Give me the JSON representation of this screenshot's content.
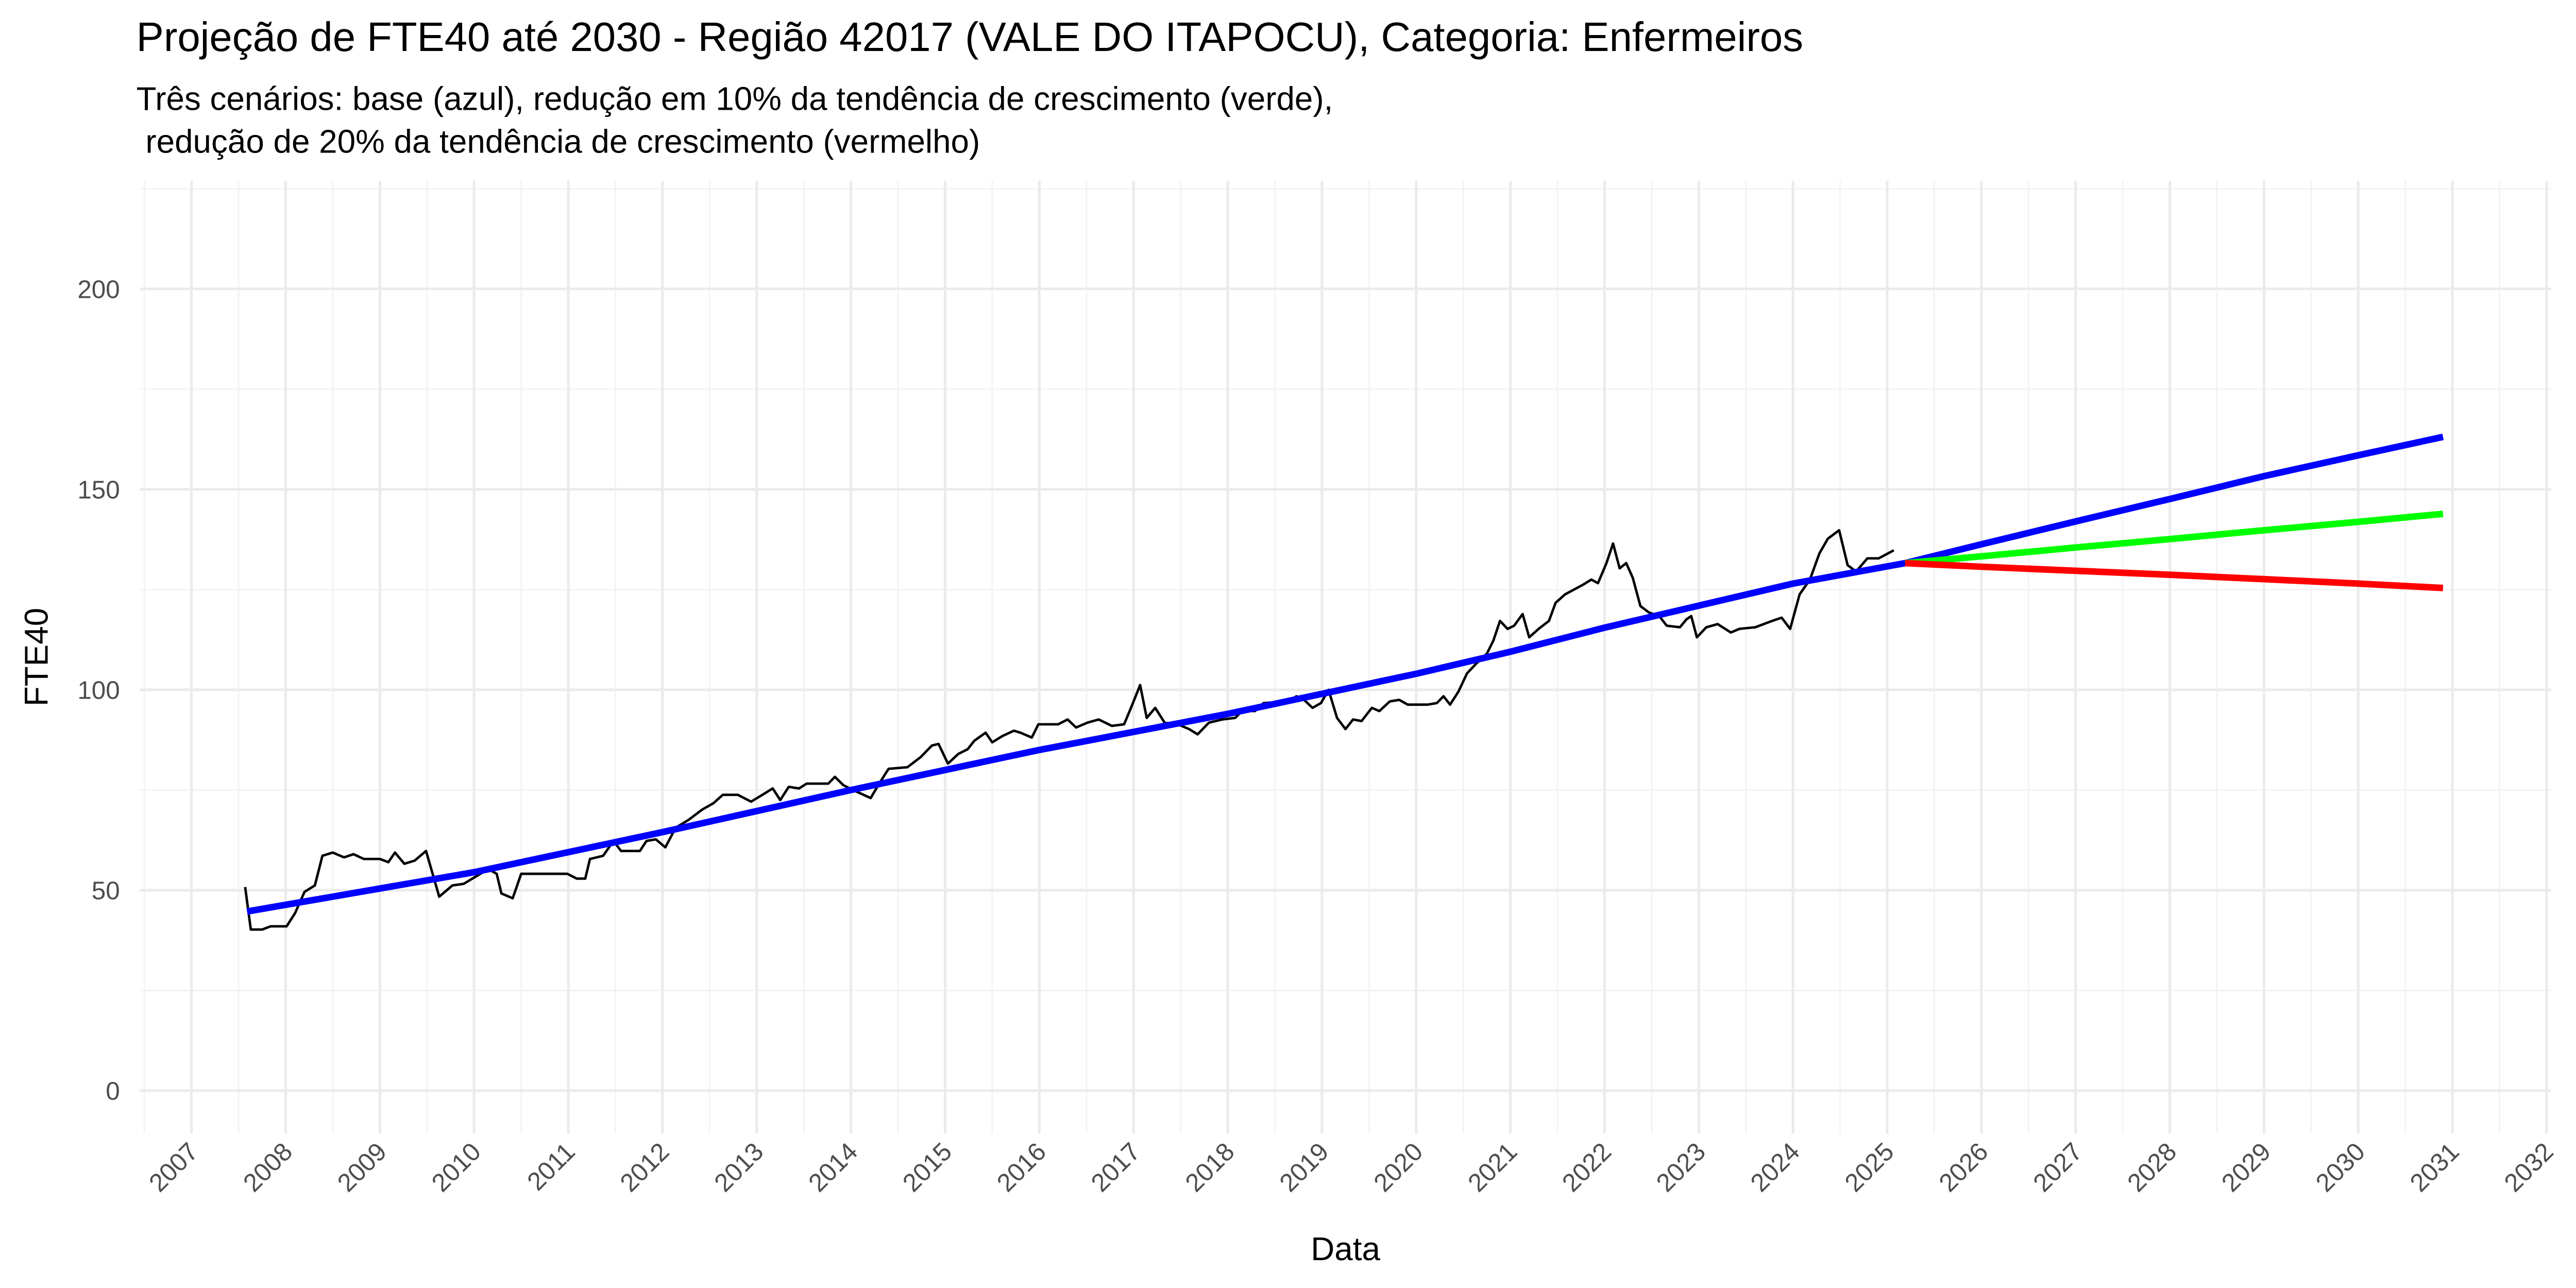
{
  "chart_data": {
    "type": "line",
    "title": "Projeção de FTE40 até 2030 - Região 42017 (VALE DO ITAPOCU), Categoria: Enfermeiros",
    "subtitle": [
      "Três cenários: base (azul), redução em 10% da tendência de crescimento (verde),",
      " redução de 20% da tendência de crescimento (vermelho)"
    ],
    "x_label": "Data",
    "y_label": "FTE40",
    "xlim": [
      2006.45,
      2032.05
    ],
    "ylim": [
      -10.7,
      227
    ],
    "xticks": [
      2007,
      2008,
      2009,
      2010,
      2011,
      2012,
      2013,
      2014,
      2015,
      2016,
      2017,
      2018,
      2019,
      2020,
      2021,
      2022,
      2023,
      2024,
      2025,
      2026,
      2027,
      2028,
      2029,
      2030,
      2031,
      2032
    ],
    "yticks": [
      0,
      50,
      100,
      150,
      200
    ],
    "grid": true,
    "series": [
      {
        "color": "#000000",
        "width": 1.5,
        "x": [
          2007.57,
          2007.63,
          2007.75,
          2007.84,
          2008.01,
          2008.1,
          2008.2,
          2008.31,
          2008.39,
          2008.5,
          2008.62,
          2008.72,
          2008.83,
          2009.0,
          2009.09,
          2009.16,
          2009.26,
          2009.37,
          2009.49,
          2009.63,
          2009.77,
          2009.89,
          2010.01,
          2010.15,
          2010.24,
          2010.29,
          2010.41,
          2010.5,
          2010.99,
          2011.09,
          2011.18,
          2011.23,
          2011.37,
          2011.48,
          2011.56,
          2011.76,
          2011.83,
          2011.93,
          2012.03,
          2012.14,
          2012.28,
          2012.42,
          2012.54,
          2012.64,
          2012.8,
          2012.94,
          2013.06,
          2013.17,
          2013.25,
          2013.34,
          2013.45,
          2013.53,
          2013.76,
          2013.83,
          2013.92,
          2014.06,
          2014.21,
          2014.3,
          2014.4,
          2014.6,
          2014.74,
          2014.86,
          2014.93,
          2015.03,
          2015.14,
          2015.24,
          2015.31,
          2015.43,
          2015.5,
          2015.61,
          2015.73,
          2015.8,
          2015.92,
          2015.99,
          2016.2,
          2016.3,
          2016.39,
          2016.51,
          2016.63,
          2016.77,
          2016.9,
          2016.98,
          2017.07,
          2017.14,
          2017.23,
          2017.33,
          2017.47,
          2017.59,
          2017.68,
          2017.8,
          2017.94,
          2018.08,
          2018.15,
          2018.29,
          2018.38,
          2018.64,
          2018.73,
          2018.81,
          2018.9,
          2018.99,
          2019.07,
          2019.16,
          2019.25,
          2019.33,
          2019.42,
          2019.53,
          2019.61,
          2019.72,
          2019.82,
          2019.91,
          2020.12,
          2020.22,
          2020.29,
          2020.36,
          2020.45,
          2020.54,
          2020.64,
          2020.75,
          2020.82,
          2020.89,
          2020.97,
          2021.04,
          2021.13,
          2021.2,
          2021.3,
          2021.41,
          2021.48,
          2021.58,
          2021.77,
          2021.86,
          2021.93,
          2022.02,
          2022.09,
          2022.16,
          2022.23,
          2022.3,
          2022.38,
          2022.47,
          2022.58,
          2022.66,
          2022.8,
          2022.87,
          2022.92,
          2022.98,
          2023.08,
          2023.2,
          2023.34,
          2023.43,
          2023.6,
          2023.78,
          2023.88,
          2023.97,
          2024.07,
          2024.18,
          2024.28,
          2024.37,
          2024.49,
          2024.58,
          2024.67,
          2024.79,
          2024.91,
          2025.07
        ],
        "values": [
          50.8,
          40.2,
          40.2,
          41.0,
          41.0,
          44.3,
          49.6,
          51.2,
          58.6,
          59.4,
          58.2,
          59.0,
          57.8,
          57.8,
          57.0,
          59.4,
          56.6,
          57.4,
          59.8,
          48.4,
          51.2,
          51.6,
          53.3,
          55.3,
          54.1,
          49.2,
          48.0,
          54.1,
          54.1,
          52.9,
          52.9,
          57.8,
          58.6,
          62.3,
          59.8,
          59.8,
          62.3,
          62.7,
          60.7,
          65.6,
          67.6,
          70.1,
          71.7,
          73.8,
          73.8,
          72.1,
          73.8,
          75.4,
          72.5,
          75.8,
          75.4,
          76.6,
          76.6,
          78.3,
          76.2,
          74.6,
          73.0,
          76.6,
          80.3,
          80.7,
          83.2,
          86.1,
          86.5,
          81.6,
          84.0,
          85.2,
          87.3,
          89.3,
          86.9,
          88.5,
          89.8,
          89.3,
          88.1,
          91.4,
          91.4,
          92.6,
          90.6,
          91.8,
          92.6,
          91.0,
          91.4,
          95.9,
          101.2,
          93.0,
          95.5,
          91.8,
          91.4,
          90.2,
          88.9,
          91.8,
          92.6,
          93.0,
          94.7,
          94.7,
          96.7,
          97.1,
          98.4,
          97.5,
          95.5,
          96.7,
          100.0,
          93.0,
          90.2,
          92.6,
          92.2,
          95.5,
          94.7,
          97.1,
          97.5,
          96.3,
          96.3,
          96.7,
          98.4,
          96.3,
          99.6,
          104.1,
          106.6,
          109.0,
          112.3,
          117.2,
          115.2,
          116.0,
          118.9,
          113.1,
          115.2,
          117.2,
          121.7,
          123.8,
          126.2,
          127.5,
          126.6,
          131.6,
          136.5,
          130.3,
          131.6,
          127.9,
          120.9,
          119.3,
          118.4,
          116.0,
          115.6,
          117.6,
          118.4,
          113.1,
          115.6,
          116.4,
          114.3,
          115.2,
          115.6,
          117.2,
          118.0,
          115.2,
          123.8,
          127.5,
          134.0,
          137.7,
          139.8,
          131.1,
          129.5,
          132.8,
          132.8,
          134.8
        ]
      },
      {
        "color": "#0000ff",
        "width": 4,
        "x": [
          2007.59,
          2010,
          2012,
          2014,
          2016,
          2018,
          2019,
          2020,
          2021,
          2022,
          2023,
          2024,
          2025.19,
          2026,
          2027,
          2028,
          2029,
          2030,
          2030.9
        ],
        "values": [
          44.7,
          54.5,
          64.5,
          75,
          85,
          94,
          99,
          104,
          109.5,
          115.5,
          121,
          126.5,
          131.6,
          136.3,
          142.0,
          147.6,
          153.3,
          158.5,
          163.1
        ]
      },
      {
        "color": "#00ff00",
        "width": 4,
        "x": [
          2025.19,
          2026,
          2027,
          2028,
          2029,
          2030,
          2030.9
        ],
        "values": [
          131.6,
          133.3,
          135.5,
          137.6,
          139.8,
          141.9,
          143.9
        ]
      },
      {
        "color": "#ff0000",
        "width": 4,
        "x": [
          2025.19,
          2026,
          2027,
          2028,
          2029,
          2030,
          2030.9
        ],
        "values": [
          131.6,
          130.7,
          129.7,
          128.7,
          127.6,
          126.5,
          125.4
        ]
      }
    ]
  }
}
